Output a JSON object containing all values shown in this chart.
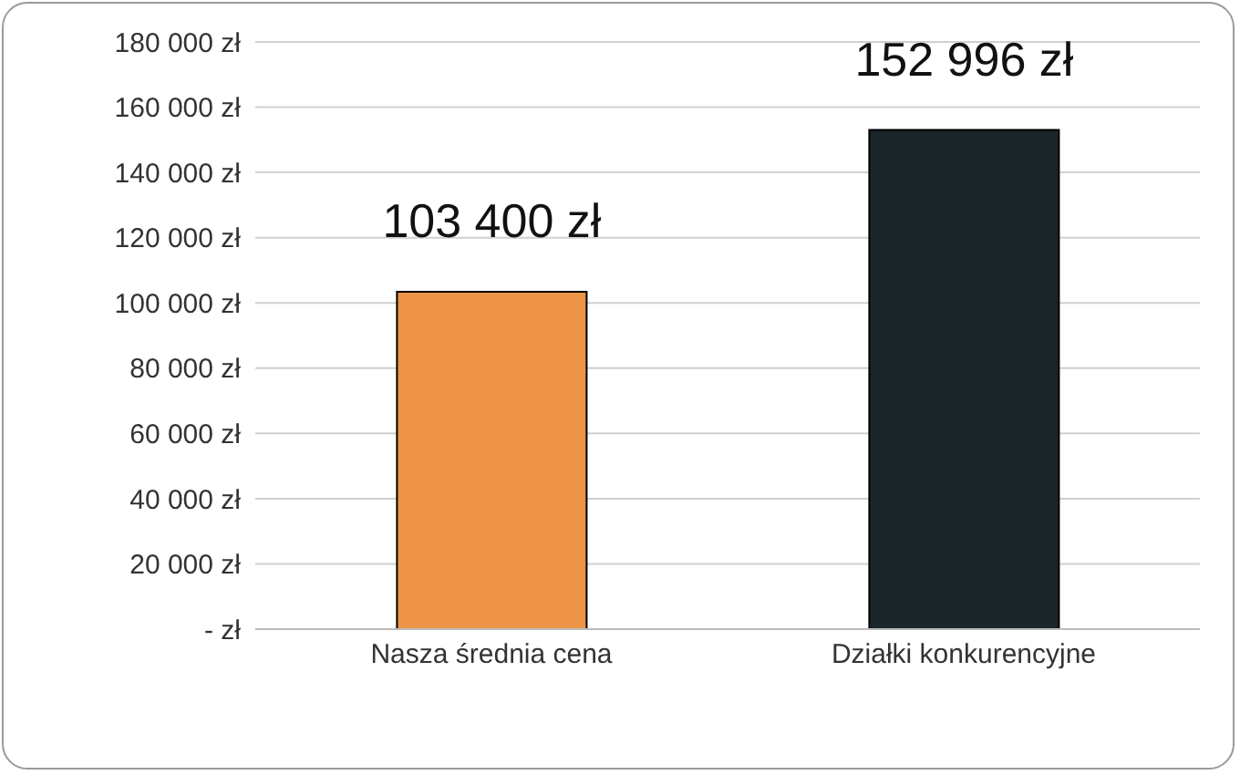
{
  "chart_data": {
    "type": "bar",
    "categories": [
      "Nasza średnia cena",
      "Działki konkurencyjne"
    ],
    "values": [
      103400,
      152996
    ],
    "colors": [
      "#ed9446",
      "#1b262b"
    ],
    "value_labels": [
      "103 400 zł",
      "152 996 zł"
    ],
    "ylim": [
      0,
      180000
    ],
    "yticks": [
      {
        "value": 0,
        "label": "-   zł"
      },
      {
        "value": 20000,
        "label": "20 000 zł"
      },
      {
        "value": 40000,
        "label": "40 000 zł"
      },
      {
        "value": 60000,
        "label": "60 000 zł"
      },
      {
        "value": 80000,
        "label": "80 000 zł"
      },
      {
        "value": 100000,
        "label": "100 000 zł"
      },
      {
        "value": 120000,
        "label": "120 000 zł"
      },
      {
        "value": 140000,
        "label": "140 000 zł"
      },
      {
        "value": 160000,
        "label": "160 000 zł"
      },
      {
        "value": 180000,
        "label": "180 000 zł"
      }
    ],
    "grid": "y"
  }
}
